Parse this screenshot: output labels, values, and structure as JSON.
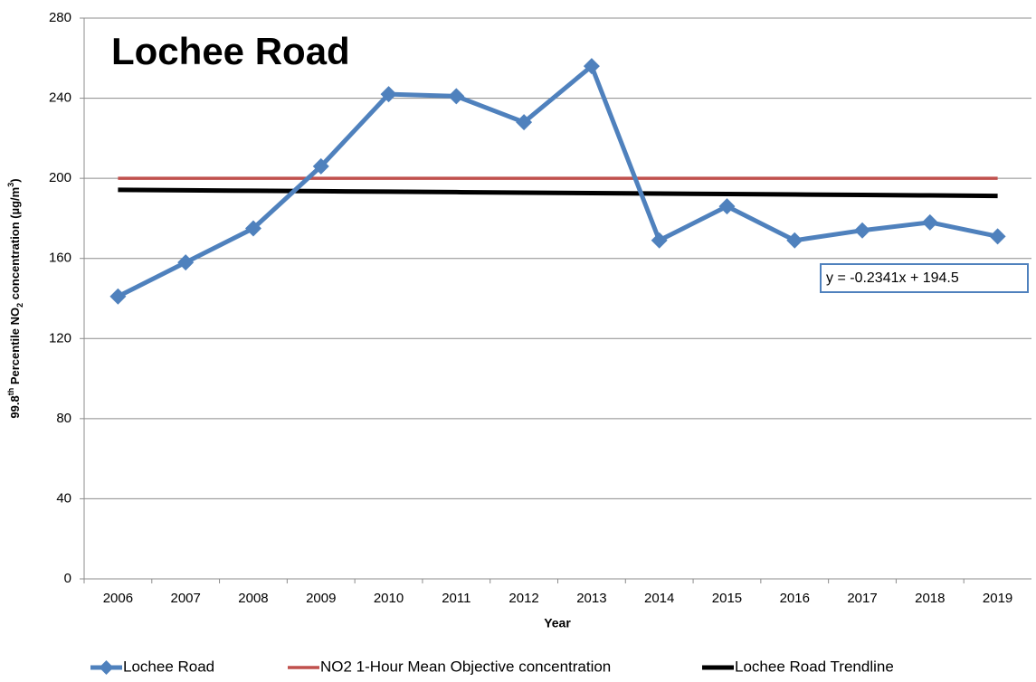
{
  "chart_data": {
    "type": "line",
    "title": "Lochee Road",
    "x_label": "Year",
    "y_label": [
      {
        "text": "99.8"
      },
      {
        "text": "th",
        "shift": "super"
      },
      {
        "text": " Percentile NO"
      },
      {
        "text": "2",
        "shift": "sub"
      },
      {
        "text": " concentration (µg/m"
      },
      {
        "text": "3",
        "shift": "super"
      },
      {
        "text": ")"
      }
    ],
    "annotation": "y = -0.2341x + 194.5",
    "categories": [
      "2006",
      "2007",
      "2008",
      "2009",
      "2010",
      "2011",
      "2012",
      "2013",
      "2014",
      "2015",
      "2016",
      "2017",
      "2018",
      "2019"
    ],
    "series": [
      {
        "name": "Lochee Road",
        "color": "#4f81bd",
        "markers": true,
        "values": [
          141,
          158,
          175,
          206,
          242,
          241,
          228,
          256,
          169,
          186,
          169,
          174,
          178,
          171
        ]
      },
      {
        "name": "NO2 1-Hour Mean Objective concentration",
        "color": "#c0504d",
        "markers": false,
        "values": [
          200,
          200,
          200,
          200,
          200,
          200,
          200,
          200,
          200,
          200,
          200,
          200,
          200,
          200
        ]
      },
      {
        "name": "Lochee Road Trendline",
        "color": "#000000",
        "markers": false,
        "values": [
          194.27,
          194.03,
          193.8,
          193.56,
          193.33,
          193.1,
          192.86,
          192.63,
          192.39,
          192.16,
          191.92,
          191.69,
          191.46,
          191.22
        ]
      }
    ],
    "ylim": [
      0,
      280
    ],
    "yticks": [
      0,
      40,
      80,
      120,
      160,
      200,
      240,
      280
    ],
    "grid": true,
    "legend": "bottom"
  }
}
